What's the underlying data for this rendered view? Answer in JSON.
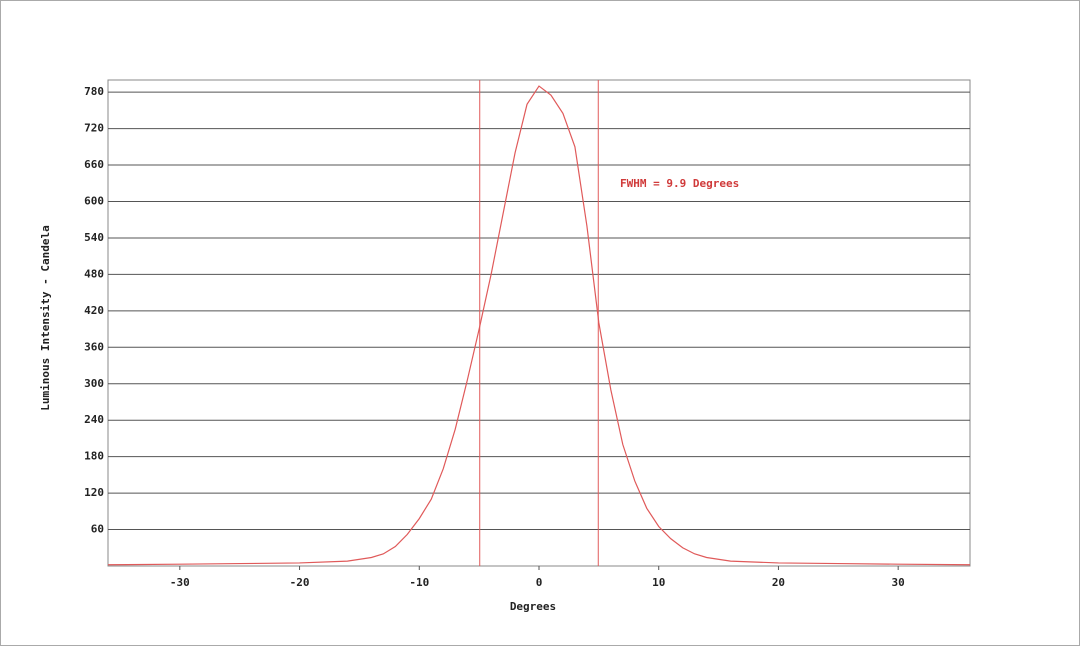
{
  "chart_data": {
    "type": "line",
    "xlabel": "Degrees",
    "ylabel": "Luminous Intensity - Candela",
    "annotation": "FWHM =  9.9 Degrees",
    "x": [
      -36,
      -30,
      -25,
      -20,
      -16,
      -14,
      -13,
      -12,
      -11,
      -10,
      -9,
      -8,
      -7,
      -6,
      -5,
      -4,
      -3,
      -2,
      -1,
      0,
      1,
      2,
      3,
      4,
      5,
      6,
      7,
      8,
      9,
      10,
      11,
      12,
      13,
      14,
      16,
      20,
      25,
      30,
      36
    ],
    "series": [
      {
        "color": "#e05a5a",
        "values": [
          2,
          3,
          4,
          5,
          8,
          14,
          20,
          32,
          52,
          78,
          110,
          160,
          225,
          305,
          390,
          480,
          580,
          680,
          760,
          790,
          775,
          745,
          690,
          560,
          400,
          290,
          200,
          140,
          95,
          65,
          45,
          30,
          20,
          14,
          8,
          5,
          4,
          3,
          2
        ]
      }
    ],
    "markers": [
      -4.95,
      4.95
    ],
    "marker_color": "#e05a5a",
    "xlim": [
      -36,
      36
    ],
    "ylim": [
      0,
      800
    ],
    "xticks": [
      -30,
      -20,
      -10,
      0,
      10,
      20,
      30
    ],
    "yticks": [
      60,
      120,
      180,
      240,
      300,
      360,
      420,
      480,
      540,
      600,
      660,
      720,
      780
    ],
    "grid": true
  }
}
